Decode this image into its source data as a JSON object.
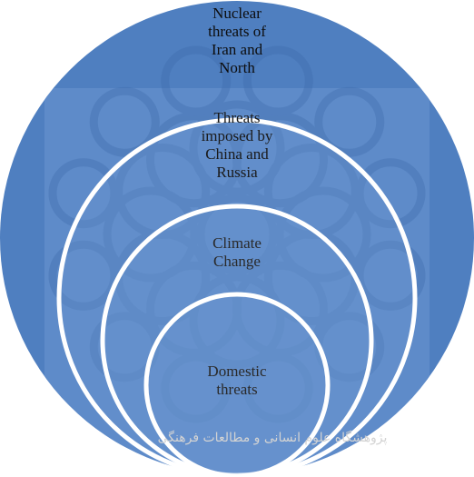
{
  "diagram": {
    "type": "nested-circles",
    "colors": {
      "fill": "#4f7fc0",
      "fill_light": "#6b95cf",
      "stroke": "#ffffff",
      "ornament": "#3d6aa8",
      "watermark_text": "#d3d3d3"
    },
    "circles": [
      {
        "label": "Nuclear\nthreats of\nIran and\nNorth"
      },
      {
        "label": "Threats\nimposed by\nChina and\nRussia"
      },
      {
        "label": "Climate\nChange"
      },
      {
        "label": "Domestic\nthreats"
      }
    ],
    "watermark": {
      "icon": "arabesque-star-pattern-icon",
      "text": "پژوهشگاه علوم انسانی و مطالعات فرهنگی"
    }
  }
}
